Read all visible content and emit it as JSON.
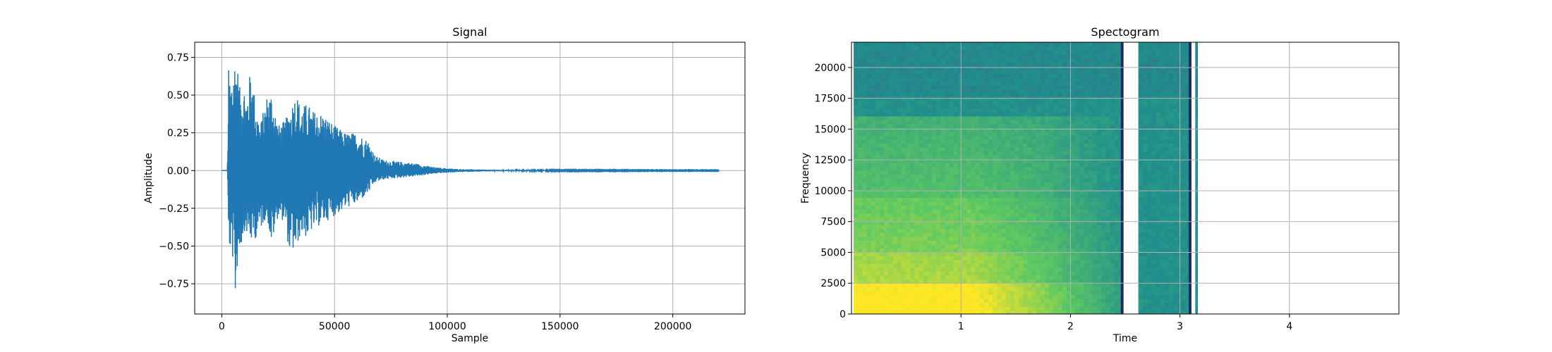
{
  "chart_data": [
    {
      "type": "line",
      "title": "Signal",
      "xlabel": "Sample",
      "ylabel": "Amplitude",
      "xlim": [
        -12000,
        232000
      ],
      "ylim": [
        -0.95,
        0.85
      ],
      "xticks": [
        0,
        50000,
        100000,
        150000,
        200000
      ],
      "xtick_labels": [
        "0",
        "50000",
        "100000",
        "150000",
        "200000"
      ],
      "yticks": [
        -0.75,
        -0.5,
        -0.25,
        0.0,
        0.25,
        0.5,
        0.75
      ],
      "ytick_labels": [
        "−0.75",
        "−0.50",
        "−0.25",
        "0.00",
        "0.25",
        "0.50",
        "0.75"
      ],
      "grid": true,
      "series_color": "#1f77b4",
      "envelope": {
        "x": [
          0,
          2500,
          3000,
          4000,
          5000,
          6000,
          7000,
          8000,
          10000,
          11000,
          13000,
          15000,
          17000,
          20000,
          22000,
          25000,
          28000,
          30000,
          33000,
          35000,
          38000,
          40000,
          45000,
          50000,
          55000,
          60000,
          65000,
          68000,
          72000,
          78000,
          85000,
          95000,
          105000,
          120000,
          150000,
          200000,
          220500
        ],
        "upper": [
          0.0,
          0.0,
          0.68,
          0.6,
          0.7,
          0.77,
          0.7,
          0.55,
          0.57,
          0.48,
          0.7,
          0.45,
          0.3,
          0.5,
          0.53,
          0.3,
          0.33,
          0.4,
          0.53,
          0.42,
          0.45,
          0.4,
          0.38,
          0.3,
          0.25,
          0.25,
          0.2,
          0.1,
          0.07,
          0.06,
          0.05,
          0.02,
          0.01,
          0.005,
          0.003,
          0.002,
          0.002
        ],
        "lower": [
          0.0,
          0.0,
          -0.5,
          -0.55,
          -0.6,
          -0.87,
          -0.62,
          -0.55,
          -0.4,
          -0.42,
          -0.48,
          -0.45,
          -0.4,
          -0.3,
          -0.5,
          -0.3,
          -0.35,
          -0.55,
          -0.53,
          -0.42,
          -0.45,
          -0.4,
          -0.35,
          -0.3,
          -0.25,
          -0.22,
          -0.15,
          -0.08,
          -0.06,
          -0.05,
          -0.04,
          -0.02,
          -0.01,
          -0.005,
          -0.003,
          -0.002,
          -0.002
        ]
      }
    },
    {
      "type": "heatmap",
      "title": "Spectogram",
      "xlabel": "Time",
      "ylabel": "Frequency",
      "xlim": [
        0,
        5
      ],
      "ylim": [
        0,
        22050
      ],
      "xticks": [
        1,
        2,
        3,
        4
      ],
      "xtick_labels": [
        "1",
        "2",
        "3",
        "4"
      ],
      "yticks": [
        0,
        2500,
        5000,
        7500,
        10000,
        12500,
        15000,
        17500,
        20000
      ],
      "ytick_labels": [
        "0",
        "2500",
        "5000",
        "7500",
        "10000",
        "12500",
        "15000",
        "17500",
        "20000"
      ],
      "grid": true,
      "colormap": "viridis",
      "segments": [
        [
          0.02,
          2.48
        ],
        [
          2.62,
          3.1
        ],
        [
          3.14,
          3.16
        ]
      ],
      "dark_edges": [
        2.46,
        3.08
      ],
      "noise_floor_hz": 16000,
      "top_band_hz": 17500
    }
  ]
}
